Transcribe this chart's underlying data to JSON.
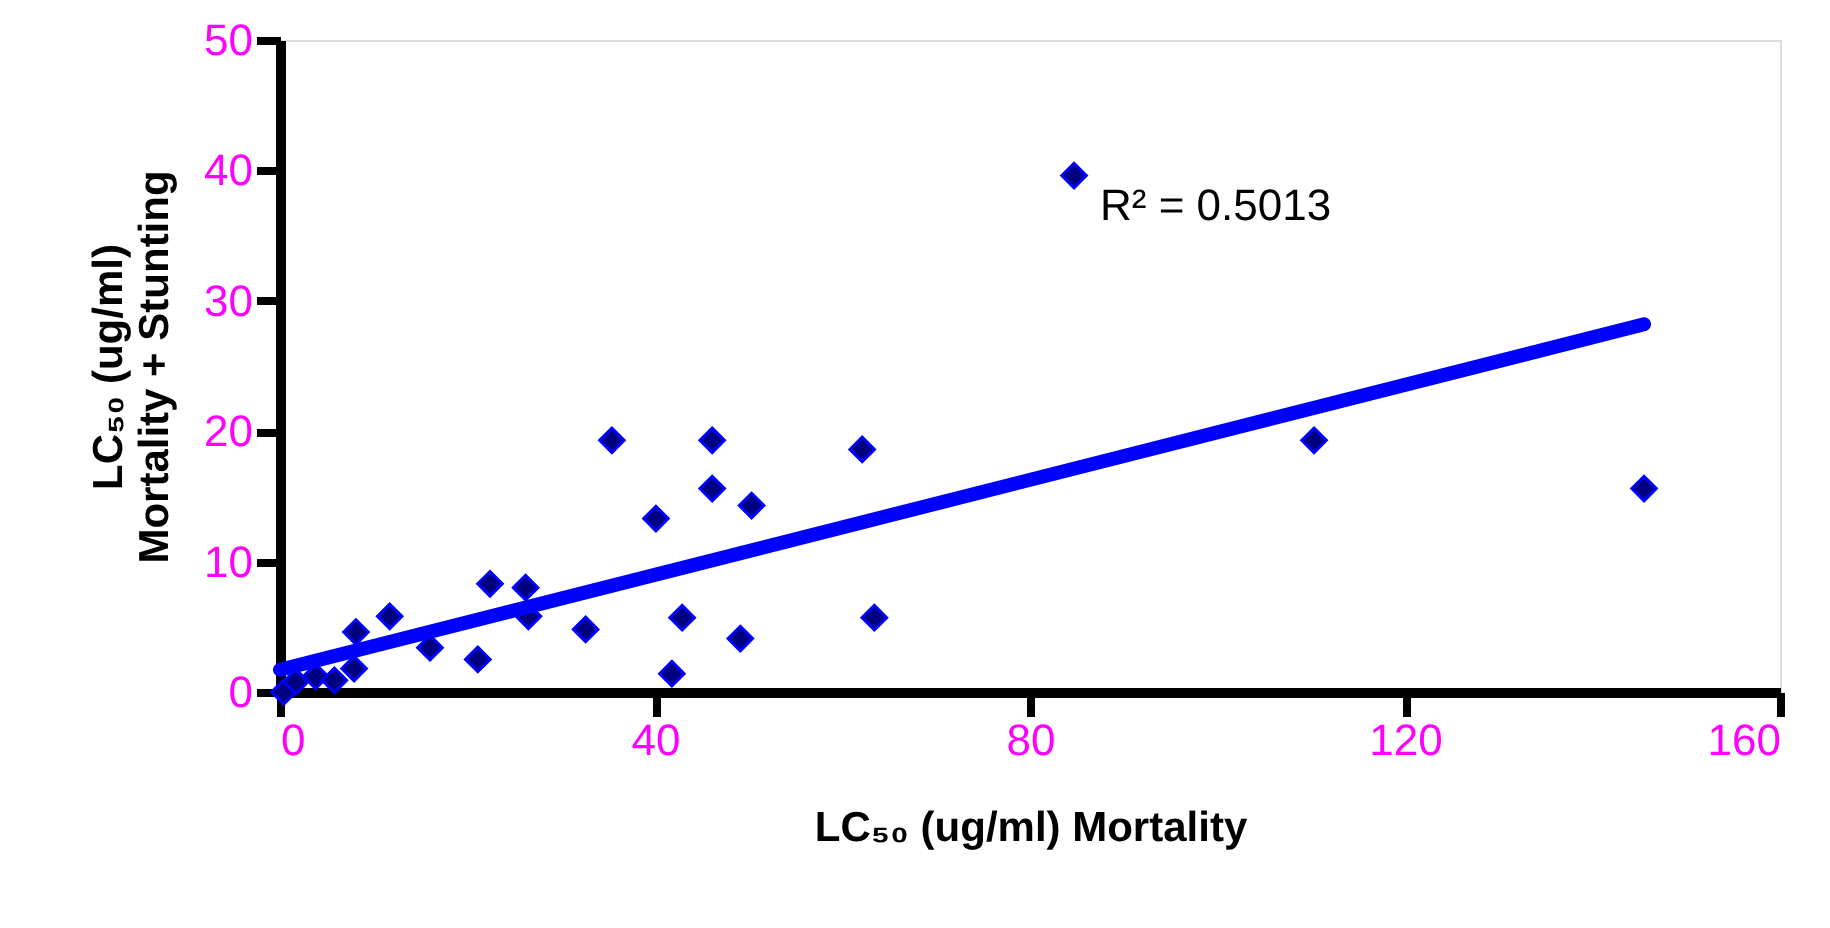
{
  "chart_data": {
    "type": "scatter",
    "xlabel": "LC₅₀ (ug/ml) Mortality",
    "ylabel": "LC₅₀ (ug/ml)\nMortality + Stunting",
    "xlim": [
      0,
      160
    ],
    "xticks": [
      0,
      40,
      80,
      120,
      160
    ],
    "ylim": [
      0,
      50
    ],
    "yticks": [
      0,
      10,
      20,
      30,
      40,
      50
    ],
    "grid": false,
    "annotations": [
      "R² = 0.5013"
    ],
    "series": [
      {
        "color": "#000080",
        "marker": "diamond",
        "x": [
          0.4,
          1.7,
          3.8,
          5.8,
          7.9,
          8.1,
          11.7,
          16,
          21.1,
          22.4,
          26.2,
          26.5,
          32.6,
          35.4,
          40.1,
          41.8,
          42.9,
          46.1,
          46.1,
          49.1,
          50.3,
          62.1,
          63.4,
          84.7,
          110.3,
          145.5
        ],
        "values": [
          0.0,
          0.8,
          1.2,
          0.9,
          1.8,
          4.6,
          5.8,
          3.4,
          2.5,
          8.3,
          8.0,
          5.8,
          4.8,
          19.3,
          13.3,
          1.4,
          5.7,
          19.3,
          15.6,
          4.1,
          14.3,
          18.6,
          5.7,
          39.6,
          19.3,
          15.6
        ]
      },
      {
        "type": "line",
        "color": "#0000ff",
        "line_style": "solid",
        "marker": "none",
        "x": [
          0,
          145.5
        ],
        "values": [
          1.7,
          28.2
        ]
      }
    ]
  }
}
